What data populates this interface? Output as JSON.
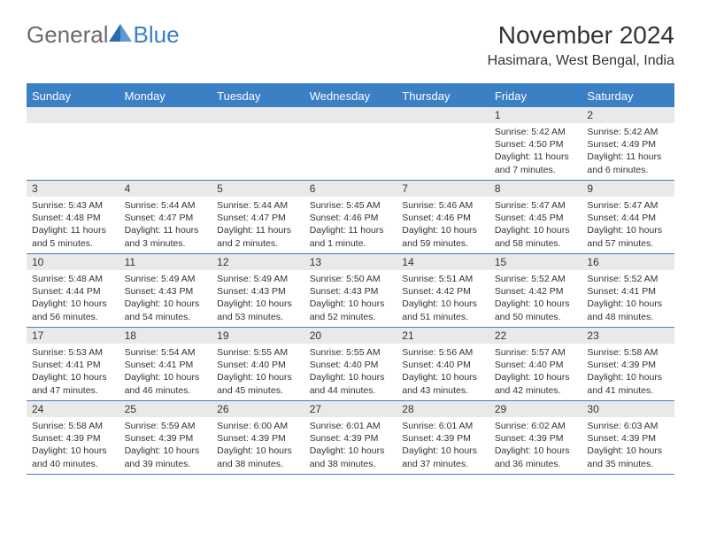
{
  "logo": {
    "general": "General",
    "blue": "Blue"
  },
  "title": "November 2024",
  "location": "Hasimara, West Bengal, India",
  "colors": {
    "header_bar": "#3b7fc4",
    "daynum_bg": "#e9e9e9",
    "text": "#333333",
    "logo_gray": "#6b6b6b",
    "logo_blue": "#3b7fc4",
    "bg": "#ffffff"
  },
  "weekdays": [
    "Sunday",
    "Monday",
    "Tuesday",
    "Wednesday",
    "Thursday",
    "Friday",
    "Saturday"
  ],
  "weeks": [
    [
      null,
      null,
      null,
      null,
      null,
      {
        "n": "1",
        "sr": "5:42 AM",
        "ss": "4:50 PM",
        "dl": "11 hours and 7 minutes."
      },
      {
        "n": "2",
        "sr": "5:42 AM",
        "ss": "4:49 PM",
        "dl": "11 hours and 6 minutes."
      }
    ],
    [
      {
        "n": "3",
        "sr": "5:43 AM",
        "ss": "4:48 PM",
        "dl": "11 hours and 5 minutes."
      },
      {
        "n": "4",
        "sr": "5:44 AM",
        "ss": "4:47 PM",
        "dl": "11 hours and 3 minutes."
      },
      {
        "n": "5",
        "sr": "5:44 AM",
        "ss": "4:47 PM",
        "dl": "11 hours and 2 minutes."
      },
      {
        "n": "6",
        "sr": "5:45 AM",
        "ss": "4:46 PM",
        "dl": "11 hours and 1 minute."
      },
      {
        "n": "7",
        "sr": "5:46 AM",
        "ss": "4:46 PM",
        "dl": "10 hours and 59 minutes."
      },
      {
        "n": "8",
        "sr": "5:47 AM",
        "ss": "4:45 PM",
        "dl": "10 hours and 58 minutes."
      },
      {
        "n": "9",
        "sr": "5:47 AM",
        "ss": "4:44 PM",
        "dl": "10 hours and 57 minutes."
      }
    ],
    [
      {
        "n": "10",
        "sr": "5:48 AM",
        "ss": "4:44 PM",
        "dl": "10 hours and 56 minutes."
      },
      {
        "n": "11",
        "sr": "5:49 AM",
        "ss": "4:43 PM",
        "dl": "10 hours and 54 minutes."
      },
      {
        "n": "12",
        "sr": "5:49 AM",
        "ss": "4:43 PM",
        "dl": "10 hours and 53 minutes."
      },
      {
        "n": "13",
        "sr": "5:50 AM",
        "ss": "4:43 PM",
        "dl": "10 hours and 52 minutes."
      },
      {
        "n": "14",
        "sr": "5:51 AM",
        "ss": "4:42 PM",
        "dl": "10 hours and 51 minutes."
      },
      {
        "n": "15",
        "sr": "5:52 AM",
        "ss": "4:42 PM",
        "dl": "10 hours and 50 minutes."
      },
      {
        "n": "16",
        "sr": "5:52 AM",
        "ss": "4:41 PM",
        "dl": "10 hours and 48 minutes."
      }
    ],
    [
      {
        "n": "17",
        "sr": "5:53 AM",
        "ss": "4:41 PM",
        "dl": "10 hours and 47 minutes."
      },
      {
        "n": "18",
        "sr": "5:54 AM",
        "ss": "4:41 PM",
        "dl": "10 hours and 46 minutes."
      },
      {
        "n": "19",
        "sr": "5:55 AM",
        "ss": "4:40 PM",
        "dl": "10 hours and 45 minutes."
      },
      {
        "n": "20",
        "sr": "5:55 AM",
        "ss": "4:40 PM",
        "dl": "10 hours and 44 minutes."
      },
      {
        "n": "21",
        "sr": "5:56 AM",
        "ss": "4:40 PM",
        "dl": "10 hours and 43 minutes."
      },
      {
        "n": "22",
        "sr": "5:57 AM",
        "ss": "4:40 PM",
        "dl": "10 hours and 42 minutes."
      },
      {
        "n": "23",
        "sr": "5:58 AM",
        "ss": "4:39 PM",
        "dl": "10 hours and 41 minutes."
      }
    ],
    [
      {
        "n": "24",
        "sr": "5:58 AM",
        "ss": "4:39 PM",
        "dl": "10 hours and 40 minutes."
      },
      {
        "n": "25",
        "sr": "5:59 AM",
        "ss": "4:39 PM",
        "dl": "10 hours and 39 minutes."
      },
      {
        "n": "26",
        "sr": "6:00 AM",
        "ss": "4:39 PM",
        "dl": "10 hours and 38 minutes."
      },
      {
        "n": "27",
        "sr": "6:01 AM",
        "ss": "4:39 PM",
        "dl": "10 hours and 38 minutes."
      },
      {
        "n": "28",
        "sr": "6:01 AM",
        "ss": "4:39 PM",
        "dl": "10 hours and 37 minutes."
      },
      {
        "n": "29",
        "sr": "6:02 AM",
        "ss": "4:39 PM",
        "dl": "10 hours and 36 minutes."
      },
      {
        "n": "30",
        "sr": "6:03 AM",
        "ss": "4:39 PM",
        "dl": "10 hours and 35 minutes."
      }
    ]
  ],
  "labels": {
    "sunrise": "Sunrise: ",
    "sunset": "Sunset: ",
    "daylight": "Daylight: "
  }
}
